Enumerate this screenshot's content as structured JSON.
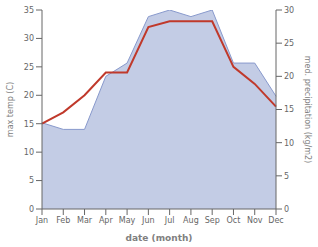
{
  "chart_data": {
    "type": "line",
    "xlabel": "date (month)",
    "ylabel": "max temp (C)",
    "y2label": "med. precipitation (kg/m2)",
    "categories": [
      "Jan",
      "Feb",
      "Mar",
      "Apr",
      "May",
      "Jun",
      "Jul",
      "Aug",
      "Sep",
      "Oct",
      "Nov",
      "Dec"
    ],
    "series": [
      {
        "type": "area",
        "axis": "y2",
        "color": "#8899cc",
        "values": [
          13,
          12,
          12,
          20,
          22,
          29,
          30,
          29,
          30,
          22,
          22,
          17
        ]
      },
      {
        "type": "line",
        "color": "#c0392b",
        "values": [
          15,
          17,
          20,
          24,
          24,
          32,
          33,
          33,
          33,
          25,
          22,
          18
        ]
      }
    ],
    "ylim": [
      0,
      35
    ],
    "yticks": [
      0,
      5,
      10,
      15,
      20,
      25,
      30,
      35
    ],
    "y2lim": [
      0,
      30
    ],
    "y2ticks": [
      0,
      5,
      10,
      15,
      20,
      25,
      30
    ],
    "grid": false
  }
}
